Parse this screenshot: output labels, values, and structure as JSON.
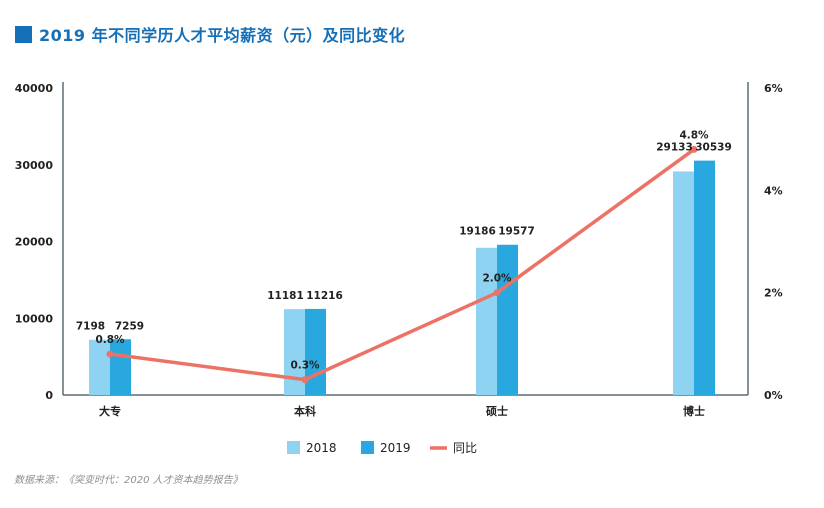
{
  "title": "2019 年不同学历人才平均薪资（元）及同比变化",
  "source": "数据来源：《突变时代：2020 人才资本趋势报告》",
  "colors": {
    "s2018": "#8fd3f2",
    "s2019": "#29a8e0",
    "yoy": "#ec7266",
    "title": "#1570b8",
    "axis": "#5f6b75"
  },
  "chart_data": {
    "type": "bar",
    "categories": [
      "大专",
      "本科",
      "硕士",
      "博士"
    ],
    "series": [
      {
        "name": "2018",
        "type": "bar",
        "values": [
          7198,
          11181,
          19186,
          29133
        ]
      },
      {
        "name": "2019",
        "type": "bar",
        "values": [
          7259,
          11216,
          19577,
          30539
        ]
      },
      {
        "name": "同比",
        "type": "line",
        "axis": "right",
        "values": [
          0.8,
          0.3,
          2.0,
          4.8
        ],
        "labels": [
          "0.8%",
          "0.3%",
          "2.0%",
          "4.8%"
        ]
      }
    ],
    "y_left": {
      "ticks": [
        0,
        10000,
        20000,
        30000,
        40000
      ],
      "tick_labels": [
        "0",
        "10000",
        "20000",
        "30000",
        "40000"
      ],
      "ylim": [
        0,
        40000
      ]
    },
    "y_right": {
      "ticks": [
        0,
        2,
        4,
        6
      ],
      "tick_labels": [
        "0%",
        "2%",
        "4%",
        "6%"
      ],
      "ylim": [
        0,
        6
      ]
    },
    "legend": {
      "position": "bottom",
      "labels": [
        "2018",
        "2019",
        "同比"
      ]
    },
    "grid": false
  }
}
